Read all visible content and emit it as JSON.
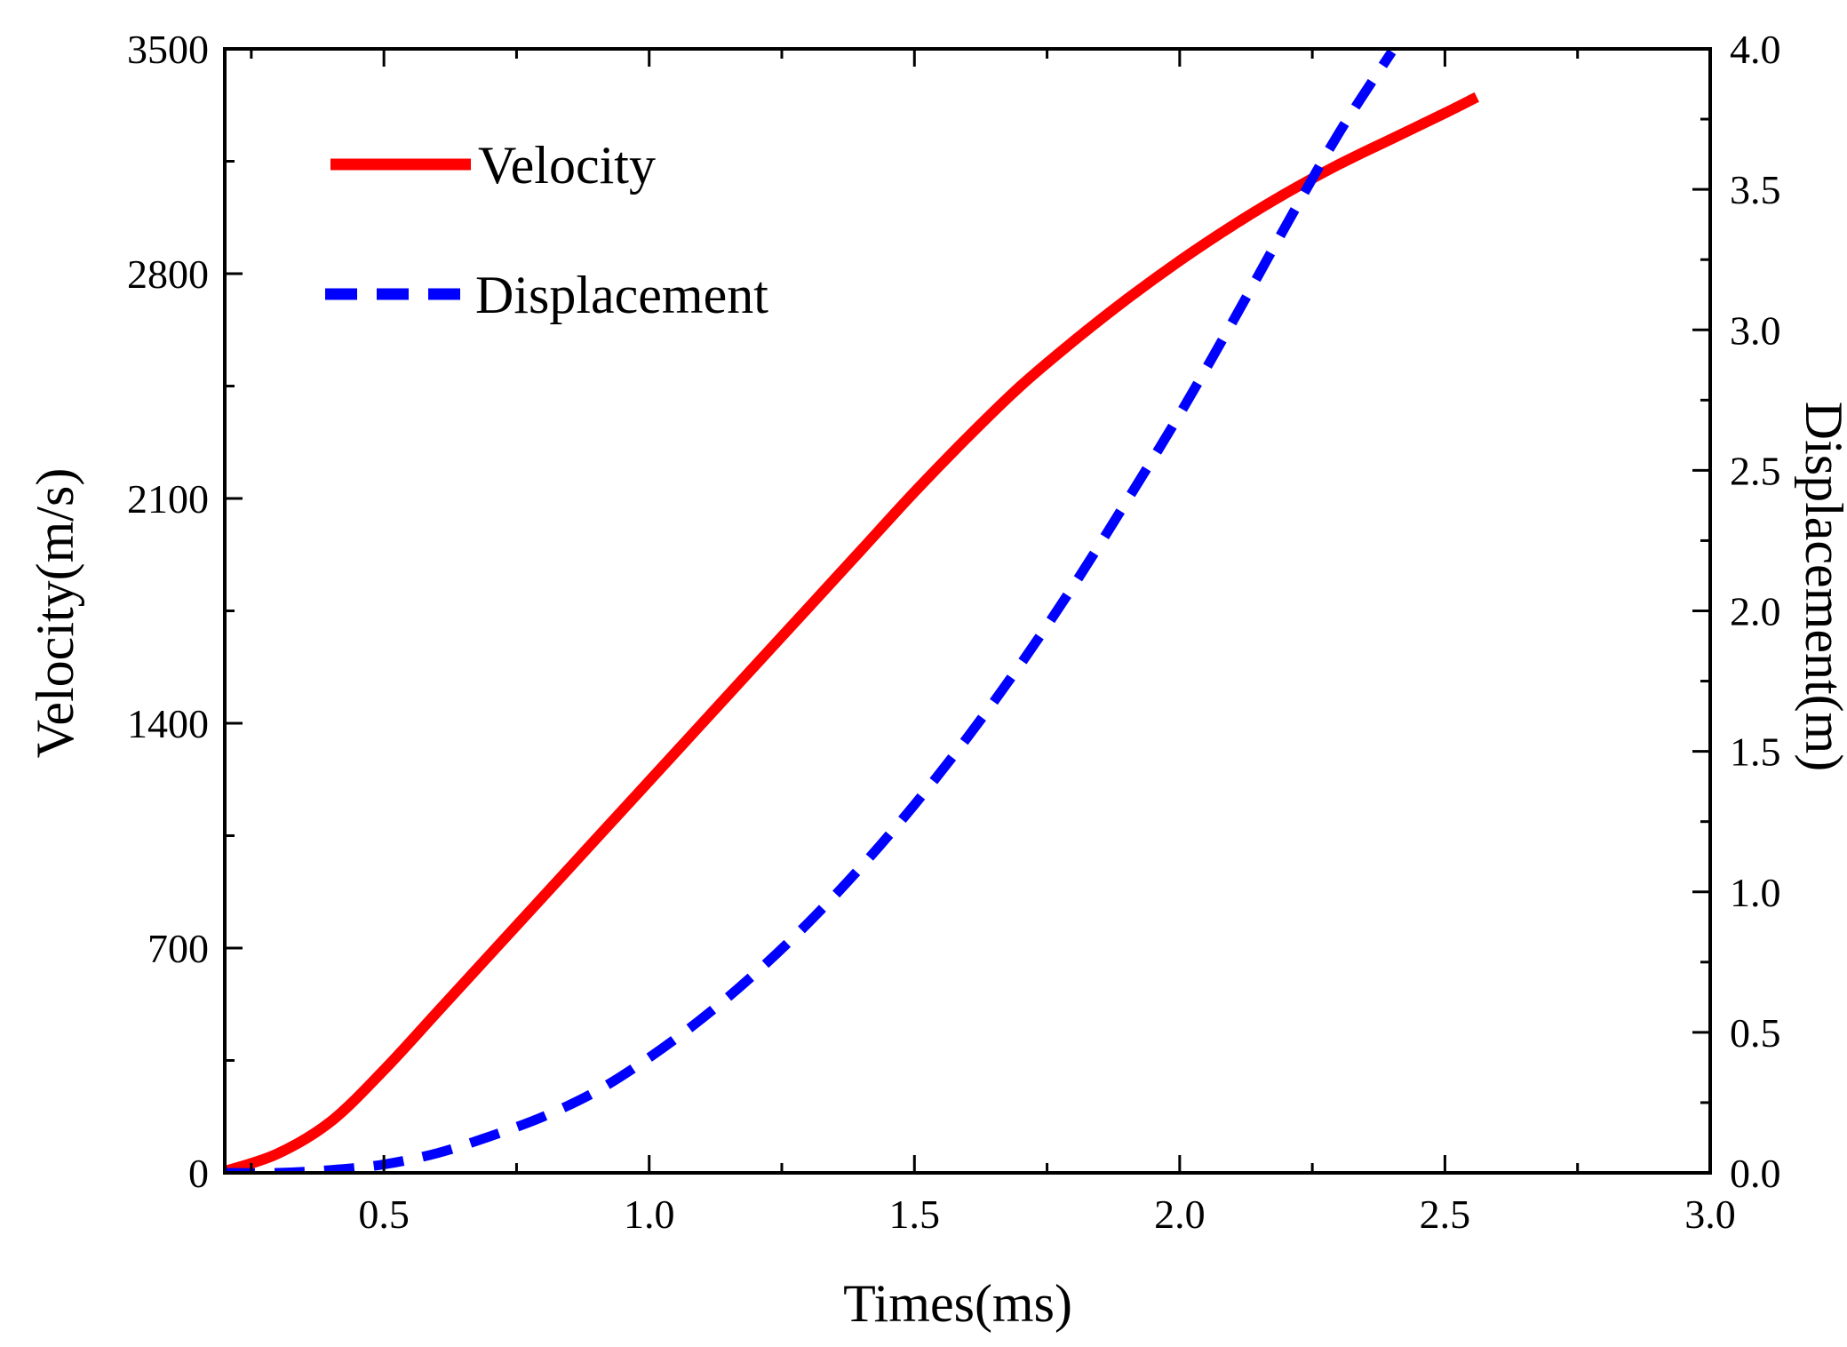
{
  "chart_data": {
    "type": "line",
    "title": "",
    "xlabel": "Times(ms)",
    "ylabel": "Velocity(m/s)",
    "y2label": "Displacement(m)",
    "xlim": [
      0.2,
      3.0
    ],
    "ylim": [
      0,
      3500
    ],
    "y2lim": [
      0.0,
      4.0
    ],
    "x_ticks": [
      0.5,
      1.0,
      1.5,
      2.0,
      2.5,
      3.0
    ],
    "x_tick_labels": [
      "0.5",
      "1.0",
      "1.5",
      "2.0",
      "2.5",
      "3.0"
    ],
    "y_ticks": [
      0,
      700,
      1400,
      2100,
      2800,
      3500
    ],
    "y_tick_labels": [
      "0",
      "700",
      "1400",
      "2100",
      "2800",
      "3500"
    ],
    "y2_ticks": [
      0.0,
      0.5,
      1.0,
      1.5,
      2.0,
      2.5,
      3.0,
      3.5,
      4.0
    ],
    "y2_tick_labels": [
      "0.0",
      "0.5",
      "1.0",
      "1.5",
      "2.0",
      "2.5",
      "3.0",
      "3.5",
      "4.0"
    ],
    "grid": false,
    "legend_position": "top-left",
    "series": [
      {
        "name": "Velocity",
        "axis": "left",
        "color": "#ff0000",
        "style": "solid",
        "x": [
          0.2,
          0.3,
          0.4,
          0.5,
          0.6,
          0.7,
          0.8,
          0.9,
          1.0,
          1.1,
          1.2,
          1.3,
          1.4,
          1.5,
          1.6,
          1.7,
          1.8,
          1.9,
          2.0,
          2.1,
          2.2,
          2.3,
          2.4,
          2.5,
          2.56
        ],
        "values": [
          5,
          60,
          160,
          320,
          500,
          680,
          860,
          1040,
          1220,
          1400,
          1580,
          1760,
          1940,
          2120,
          2290,
          2450,
          2590,
          2720,
          2840,
          2950,
          3050,
          3140,
          3220,
          3300,
          3350
        ]
      },
      {
        "name": "Displacement",
        "axis": "right",
        "color": "#0000ff",
        "style": "dashed",
        "x": [
          0.2,
          0.3,
          0.4,
          0.5,
          0.6,
          0.7,
          0.8,
          0.9,
          1.0,
          1.1,
          1.2,
          1.3,
          1.4,
          1.5,
          1.6,
          1.7,
          1.8,
          1.9,
          2.0,
          2.1,
          2.2,
          2.3,
          2.4
        ],
        "values": [
          0.0,
          0.0,
          0.01,
          0.03,
          0.07,
          0.13,
          0.2,
          0.29,
          0.41,
          0.55,
          0.71,
          0.89,
          1.09,
          1.31,
          1.55,
          1.81,
          2.09,
          2.39,
          2.7,
          3.03,
          3.37,
          3.7,
          3.99
        ]
      }
    ]
  }
}
